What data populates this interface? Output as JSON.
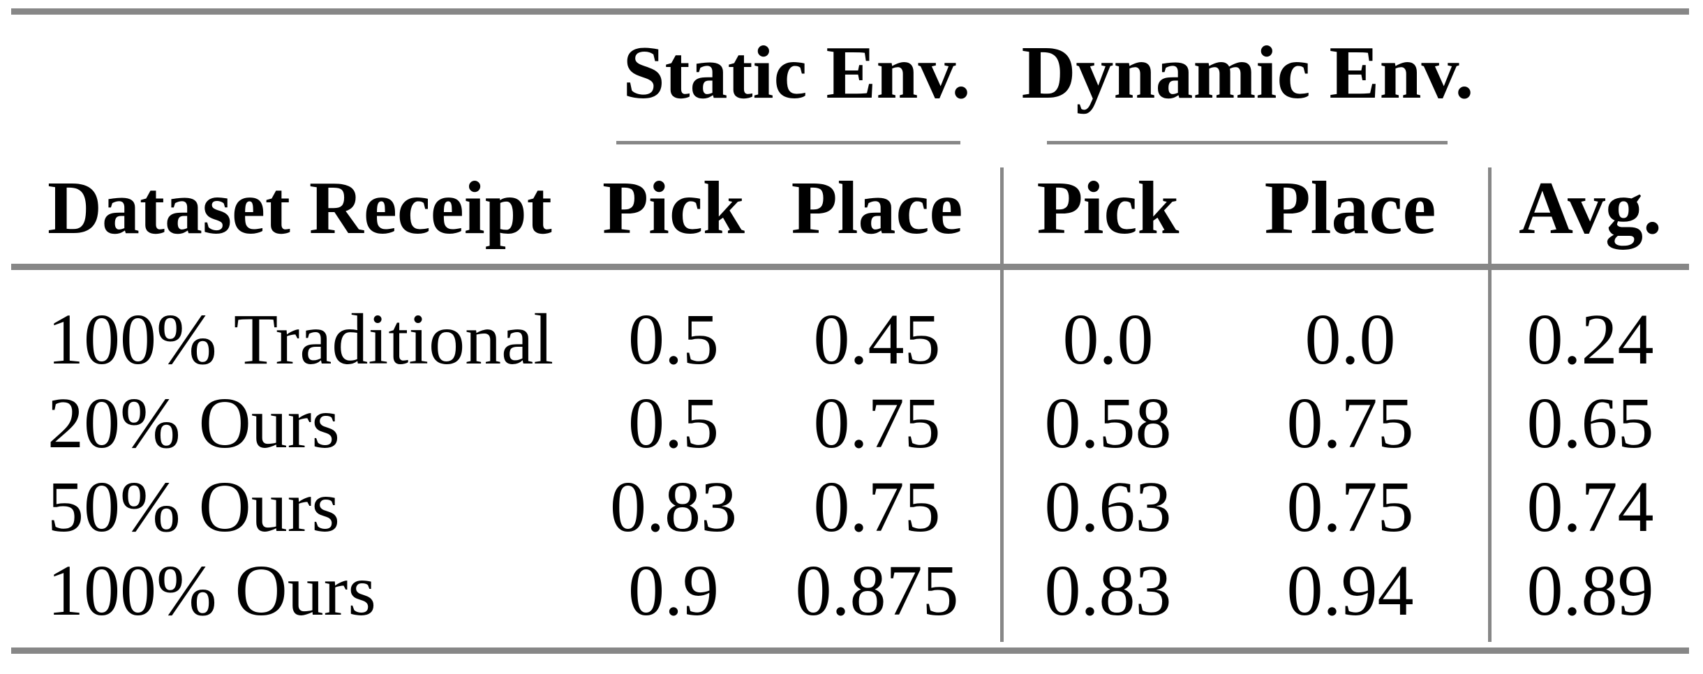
{
  "colors": {
    "background": "#ffffff",
    "text": "#000000",
    "rule_gray": "#878787"
  },
  "table": {
    "group_headers": {
      "static": "Static Env.",
      "dynamic": "Dynamic Env."
    },
    "column_headers": {
      "row_label": "Dataset Receipt",
      "static_pick": "Pick",
      "static_place": "Place",
      "dynamic_pick": "Pick",
      "dynamic_place": "Place",
      "avg": "Avg."
    },
    "rows": [
      {
        "label": "100% Traditional",
        "values": [
          "0.5",
          "0.45",
          "0.0",
          "0.0",
          "0.24"
        ]
      },
      {
        "label": "20% Ours",
        "values": [
          "0.5",
          "0.75",
          "0.58",
          "0.75",
          "0.65"
        ]
      },
      {
        "label": "50% Ours",
        "values": [
          "0.83",
          "0.75",
          "0.63",
          "0.75",
          "0.74"
        ]
      },
      {
        "label": "100% Ours",
        "values": [
          "0.9",
          "0.875",
          "0.83",
          "0.94",
          "0.89"
        ]
      }
    ]
  },
  "chart_data": {
    "type": "table",
    "columns": [
      "Dataset Receipt",
      "Static Env. Pick",
      "Static Env. Place",
      "Dynamic Env. Pick",
      "Dynamic Env. Place",
      "Avg."
    ],
    "rows": [
      [
        "100% Traditional",
        0.5,
        0.45,
        0.0,
        0.0,
        0.24
      ],
      [
        "20% Ours",
        0.5,
        0.75,
        0.58,
        0.75,
        0.65
      ],
      [
        "50% Ours",
        0.83,
        0.75,
        0.63,
        0.75,
        0.74
      ],
      [
        "100% Ours",
        0.9,
        0.875,
        0.83,
        0.94,
        0.89
      ]
    ]
  }
}
